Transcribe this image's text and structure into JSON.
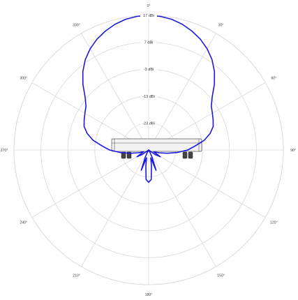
{
  "chart_data": {
    "type": "polar-line",
    "angle_unit": "deg",
    "angle_zero": "top",
    "angle_direction": "clockwise",
    "angle_ticks": [
      "0°",
      "30°",
      "60°",
      "90°",
      "120°",
      "150°",
      "180°",
      "210°",
      "240°",
      "270°",
      "300°",
      "330°"
    ],
    "radial_ticks": [
      {
        "value": -23,
        "label": "-23 dBi"
      },
      {
        "value": -13,
        "label": "-13 dBi"
      },
      {
        "value": -3,
        "label": "-3 dBi"
      },
      {
        "value": 7,
        "label": "7 dBi"
      },
      {
        "value": 17,
        "label": "17 dBi"
      }
    ],
    "rlim": [
      -33,
      17
    ],
    "grid": true,
    "series": [
      {
        "color": "#1a1adc",
        "angles": [
          0,
          5,
          10,
          15,
          20,
          25,
          30,
          35,
          40,
          45,
          50,
          55,
          60,
          65,
          70,
          75,
          80,
          85,
          90,
          95,
          100,
          105,
          110,
          115,
          120,
          125,
          130,
          135,
          140,
          145,
          150,
          155,
          160,
          165,
          170,
          175,
          180,
          185,
          190,
          195,
          200,
          205,
          210,
          215,
          220,
          225,
          230,
          235,
          240,
          245,
          250,
          255,
          260,
          265,
          270,
          275,
          280,
          285,
          290,
          295,
          300,
          305,
          310,
          315,
          320,
          325,
          330,
          335,
          340,
          345,
          350,
          355
        ],
        "values": [
          17.0,
          16.8,
          16.3,
          15.3,
          14.0,
          12.4,
          10.4,
          8.0,
          5.0,
          1.5,
          -2.2,
          -4.6,
          -5.7,
          -6.6,
          -7.5,
          -9.4,
          -12.0,
          -15.6,
          -18.5,
          -22.4,
          -26.0,
          -29.0,
          -31.0,
          -30.0,
          -28.0,
          -30.0,
          -33.0,
          -33.0,
          -33.0,
          -33.0,
          -32.0,
          -30.0,
          -25.0,
          -30.0,
          -27.0,
          -22.0,
          -21.0,
          -22.0,
          -27.0,
          -30.0,
          -25.0,
          -30.0,
          -32.0,
          -33.0,
          -33.0,
          -33.0,
          -33.0,
          -30.0,
          -28.0,
          -30.0,
          -31.0,
          -29.0,
          -26.0,
          -22.4,
          -18.5,
          -15.6,
          -12.0,
          -9.4,
          -7.5,
          -6.6,
          -5.7,
          -4.6,
          -2.2,
          1.5,
          5.0,
          8.0,
          10.4,
          12.4,
          14.0,
          15.3,
          16.3,
          16.8
        ]
      }
    ]
  },
  "colors": {
    "pattern": "#1a1adc",
    "grid": "#d8d8d8"
  }
}
